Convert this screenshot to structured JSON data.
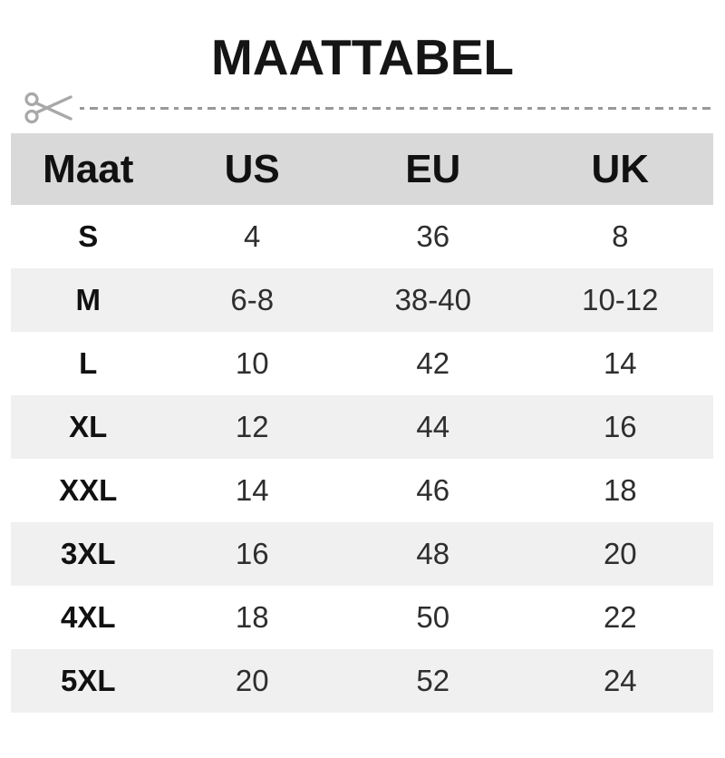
{
  "title": "MAATTABEL",
  "colors": {
    "header_bg": "#d9d9d9",
    "row_bg": "#ffffff",
    "row_alt_bg": "#f0f0f0",
    "title_text": "#151515",
    "header_text": "#111111",
    "label_text": "#111111",
    "value_text": "#2e2e2e",
    "dash": "#999999",
    "scissors": "#a8a8a8"
  },
  "cut_line": {
    "icon": "scissors-icon",
    "style": "dash-dot"
  },
  "table": {
    "columns": [
      "Maat",
      "US",
      "EU",
      "UK"
    ],
    "rows": [
      [
        "S",
        "4",
        "36",
        "8"
      ],
      [
        "M",
        "6-8",
        "38-40",
        "10-12"
      ],
      [
        "L",
        "10",
        "42",
        "14"
      ],
      [
        "XL",
        "12",
        "44",
        "16"
      ],
      [
        "XXL",
        "14",
        "46",
        "18"
      ],
      [
        "3XL",
        "16",
        "48",
        "20"
      ],
      [
        "4XL",
        "18",
        "50",
        "22"
      ],
      [
        "5XL",
        "20",
        "52",
        "24"
      ]
    ]
  },
  "chart_data": {
    "type": "table",
    "title": "MAATTABEL",
    "columns": [
      "Maat",
      "US",
      "EU",
      "UK"
    ],
    "rows": [
      [
        "S",
        "4",
        "36",
        "8"
      ],
      [
        "M",
        "6-8",
        "38-40",
        "10-12"
      ],
      [
        "L",
        "10",
        "42",
        "14"
      ],
      [
        "XL",
        "12",
        "44",
        "16"
      ],
      [
        "XXL",
        "14",
        "46",
        "18"
      ],
      [
        "3XL",
        "16",
        "48",
        "20"
      ],
      [
        "4XL",
        "18",
        "50",
        "22"
      ],
      [
        "5XL",
        "20",
        "52",
        "24"
      ]
    ],
    "layout": {
      "header_background": "#d9d9d9",
      "zebra_striping": true,
      "alt_row_background": "#f0f0f0",
      "grid": false
    }
  }
}
